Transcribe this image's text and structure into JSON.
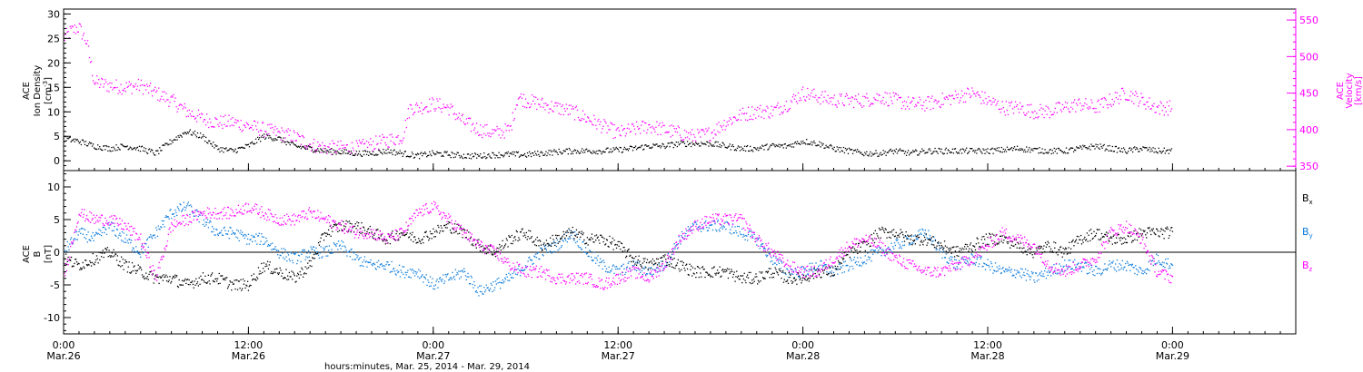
{
  "chart_data": [
    {
      "type": "scatter",
      "panel": "top",
      "left_axis": {
        "label_lines": [
          "ACE",
          "Ion Density"
        ],
        "unit_base": "[cm",
        "unit_sup": "-3",
        "unit_close": "]",
        "ylim": [
          -2,
          31
        ],
        "major_ticks": [
          0,
          5,
          10,
          15,
          20,
          25,
          30
        ],
        "tick_labels": [
          "0",
          "5",
          "10",
          "15",
          "20",
          "25",
          "30"
        ],
        "minor_step": 1
      },
      "right_axis": {
        "label_lines": [
          "ACE",
          "Velocity",
          "[km/s]"
        ],
        "ylim": [
          344,
          565
        ],
        "major_ticks": [
          350,
          400,
          450,
          500,
          550
        ],
        "tick_labels": [
          "350",
          "400",
          "450",
          "500",
          "550"
        ],
        "minor_step": 10,
        "color": "#ff00ff"
      },
      "series": [
        {
          "axis": "left",
          "color": "#000000",
          "x_hours": [
            0,
            1,
            2,
            3,
            4,
            5,
            6,
            7,
            8,
            9,
            10,
            11,
            12,
            13,
            14,
            15,
            16,
            17,
            18,
            19,
            20,
            21,
            22,
            23,
            24,
            25,
            26,
            27,
            28,
            29,
            30,
            31,
            32,
            33,
            34,
            35,
            36,
            37,
            38,
            39,
            40,
            41,
            42,
            43,
            44,
            45,
            46,
            47,
            48,
            49,
            50,
            51,
            52,
            53,
            54,
            55,
            56,
            57,
            58,
            59,
            60,
            61,
            62,
            63,
            64,
            65,
            66,
            67,
            68,
            69,
            70,
            71,
            72
          ],
          "values": [
            4.5,
            4,
            3,
            2.5,
            3,
            2.5,
            1.5,
            4,
            6,
            5,
            2.5,
            2,
            3,
            5,
            4.5,
            3,
            2.5,
            2,
            1.8,
            1.5,
            1.5,
            2,
            1.5,
            1,
            1.5,
            1.3,
            1,
            1,
            1.2,
            1.3,
            1.2,
            1.5,
            1.8,
            2,
            2,
            2,
            2.2,
            2.5,
            3,
            3,
            3.5,
            3.5,
            3.5,
            3,
            2.5,
            2.5,
            3,
            3,
            4,
            3.5,
            2.5,
            2,
            1.5,
            1.5,
            2,
            1.5,
            2,
            2,
            2,
            2,
            2,
            2.2,
            2.5,
            2.2,
            2,
            2,
            2.5,
            3,
            2.5,
            2,
            2.5,
            2,
            2
          ]
        },
        {
          "axis": "right",
          "color": "#ff00ff",
          "x_hours": [
            0,
            0.5,
            1,
            1.5,
            2,
            3,
            4,
            5,
            6,
            7,
            8,
            9,
            10,
            11,
            12,
            13,
            14,
            15,
            16,
            17,
            18,
            19,
            20,
            21,
            22,
            22.5,
            23,
            24,
            25,
            26,
            27,
            28,
            29,
            29.5,
            30,
            31,
            32,
            33,
            34,
            35,
            36,
            37,
            38,
            39,
            40,
            41,
            42,
            43,
            44,
            45,
            46,
            47,
            48,
            49,
            50,
            51,
            52,
            53,
            54,
            55,
            56,
            57,
            58,
            59,
            60,
            61,
            62,
            63,
            64,
            65,
            66,
            67,
            68,
            69,
            70,
            71,
            72
          ],
          "values": [
            525,
            535,
            540,
            520,
            465,
            460,
            458,
            460,
            450,
            440,
            425,
            415,
            410,
            410,
            405,
            400,
            395,
            390,
            380,
            375,
            375,
            375,
            380,
            385,
            390,
            430,
            430,
            435,
            430,
            410,
            400,
            395,
            400,
            445,
            440,
            435,
            430,
            425,
            415,
            405,
            395,
            400,
            405,
            400,
            395,
            390,
            395,
            410,
            420,
            425,
            425,
            435,
            450,
            445,
            440,
            440,
            440,
            445,
            440,
            435,
            435,
            440,
            445,
            450,
            440,
            430,
            430,
            425,
            425,
            430,
            435,
            430,
            440,
            450,
            440,
            430,
            430
          ]
        }
      ]
    },
    {
      "type": "scatter",
      "panel": "bottom",
      "left_axis": {
        "label_lines": [
          "ACE",
          "B",
          "[nT]"
        ],
        "ylim": [
          -12.5,
          12.5
        ],
        "major_ticks": [
          -10,
          -5,
          0,
          5,
          10
        ],
        "tick_labels": [
          "-10",
          "-5",
          "0",
          "5",
          "10"
        ],
        "minor_step": 1
      },
      "zero_line": true,
      "legend": [
        {
          "base": "B",
          "sub": "x",
          "color": "#000000"
        },
        {
          "base": "B",
          "sub": "y",
          "color": "#0b7bdb"
        },
        {
          "base": "B",
          "sub": "z",
          "color": "#ff00ff"
        }
      ],
      "legend_position": "right",
      "series": [
        {
          "color": "#000000",
          "x_hours": [
            0,
            1,
            2,
            3,
            4,
            5,
            6,
            7,
            8,
            9,
            10,
            11,
            12,
            13,
            14,
            15,
            16,
            17,
            18,
            19,
            20,
            21,
            22,
            23,
            24,
            25,
            26,
            27,
            28,
            29,
            30,
            31,
            32,
            33,
            34,
            35,
            36,
            37,
            38,
            39,
            40,
            41,
            42,
            43,
            44,
            45,
            46,
            47,
            48,
            49,
            50,
            51,
            52,
            53,
            54,
            55,
            56,
            57,
            58,
            59,
            60,
            61,
            62,
            63,
            64,
            65,
            66,
            67,
            68,
            69,
            70,
            71,
            72
          ],
          "values": [
            -1,
            -2,
            -1,
            0,
            -2,
            -3,
            -4,
            -4,
            -5,
            -4,
            -4,
            -5,
            -5,
            -2,
            -3,
            -4,
            -2,
            3,
            4,
            4,
            3,
            2,
            3,
            2,
            3,
            4,
            3,
            1,
            0,
            2,
            3,
            1,
            2,
            3,
            2,
            2,
            1,
            -1,
            -2,
            -1,
            -2,
            -3,
            -3,
            -3,
            -4,
            -4,
            -3,
            -4,
            -4,
            -3,
            -3,
            0,
            1,
            3,
            3,
            2,
            2,
            1,
            0,
            1,
            2,
            2,
            1,
            0,
            1,
            0,
            2,
            3,
            2,
            2,
            3,
            3,
            3
          ]
        },
        {
          "color": "#0b7bdb",
          "x_hours": [
            0,
            1,
            2,
            3,
            4,
            5,
            6,
            7,
            8,
            9,
            10,
            11,
            12,
            13,
            14,
            15,
            16,
            17,
            18,
            19,
            20,
            21,
            22,
            23,
            24,
            25,
            26,
            27,
            28,
            29,
            30,
            31,
            32,
            33,
            34,
            35,
            36,
            37,
            38,
            39,
            40,
            41,
            42,
            43,
            44,
            45,
            46,
            47,
            48,
            49,
            50,
            51,
            52,
            53,
            54,
            55,
            56,
            57,
            58,
            59,
            60,
            61,
            62,
            63,
            64,
            65,
            66,
            67,
            68,
            69,
            70,
            71,
            72
          ],
          "values": [
            0,
            3,
            2,
            4,
            2,
            0,
            3,
            6,
            7,
            5,
            3,
            3,
            2,
            2,
            0,
            -1,
            0,
            0,
            1,
            -1,
            -2,
            -2,
            -3,
            -3,
            -5,
            -4,
            -3,
            -6,
            -5,
            -4,
            -2,
            0,
            1,
            3,
            0,
            -2,
            -3,
            -2,
            -3,
            -2,
            2,
            4,
            4,
            4,
            3,
            2,
            -1,
            -3,
            -3,
            -2,
            -3,
            -2,
            -1,
            0,
            1,
            2,
            3,
            0,
            -2,
            -1,
            -2,
            -3,
            -3,
            -4,
            -3,
            -2,
            -2,
            -3,
            -2,
            -2,
            -3,
            -1,
            -2
          ]
        },
        {
          "color": "#ff00ff",
          "x_hours": [
            0,
            1,
            2,
            3,
            4,
            5,
            6,
            7,
            8,
            9,
            10,
            11,
            12,
            13,
            14,
            15,
            16,
            17,
            18,
            19,
            20,
            21,
            22,
            23,
            24,
            25,
            26,
            27,
            28,
            29,
            30,
            31,
            32,
            33,
            34,
            35,
            36,
            37,
            38,
            39,
            40,
            41,
            42,
            43,
            44,
            45,
            46,
            47,
            48,
            49,
            50,
            51,
            52,
            53,
            54,
            55,
            56,
            57,
            58,
            59,
            60,
            61,
            62,
            63,
            64,
            65,
            66,
            67,
            68,
            69,
            70,
            71,
            72
          ],
          "values": [
            -4,
            6,
            5,
            5,
            4,
            2,
            -4,
            4,
            5,
            6,
            6,
            6,
            7,
            6,
            5,
            5,
            6,
            5,
            4,
            3,
            3,
            2,
            3,
            6,
            7,
            5,
            3,
            1,
            0,
            -2,
            -3,
            -3,
            -4,
            -4,
            -4,
            -5,
            -4,
            -3,
            -4,
            -2,
            2,
            4,
            5,
            5,
            5,
            2,
            0,
            -2,
            -3,
            -3,
            -1,
            1,
            2,
            1,
            -1,
            -2,
            -3,
            -3,
            -2,
            -1,
            1,
            3,
            2,
            1,
            -2,
            -3,
            -2,
            -1,
            3,
            4,
            2,
            -3,
            -4
          ]
        }
      ]
    }
  ],
  "x_axis": {
    "xlim_hours": [
      0,
      80
    ],
    "major_ticks": [
      0,
      12,
      24,
      36,
      48,
      60,
      72
    ],
    "minor_step": 1,
    "tick_labels_time": [
      "0:00",
      "12:00",
      "0:00",
      "12:00",
      "0:00",
      "12:00",
      "0:00"
    ],
    "tick_labels_date": [
      "Mar.26",
      "Mar.26",
      "Mar.27",
      "Mar.27",
      "Mar.28",
      "Mar.28",
      "Mar.29"
    ],
    "title": "hours:minutes, Mar. 25, 2014 - Mar. 29, 2014"
  }
}
